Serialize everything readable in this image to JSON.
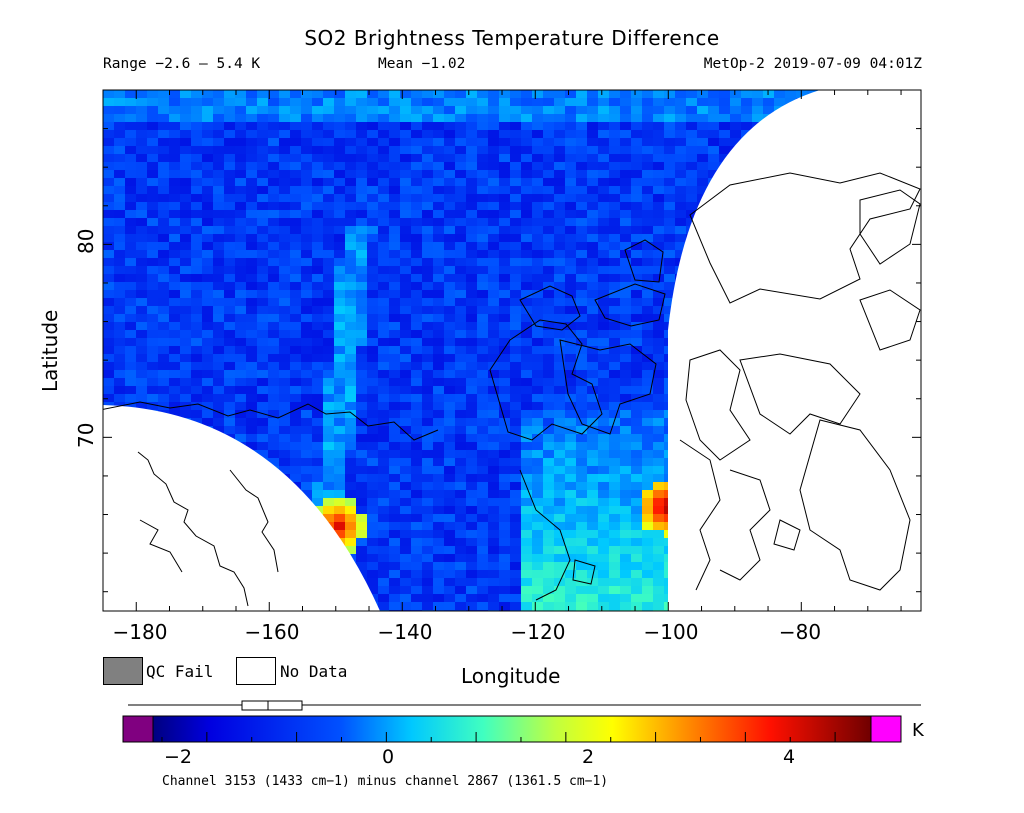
{
  "header": {
    "title": "SO2 Brightness Temperature Difference",
    "range": "Range −2.6 – 5.4 K",
    "mean": "Mean −1.02",
    "satellite": "MetOp-2 2019-07-09 04:01Z"
  },
  "axes": {
    "xlabel": "Longitude",
    "ylabel": "Latitude",
    "x_ticks": [
      "−180",
      "−160",
      "−140",
      "−120",
      "−100",
      "−80"
    ],
    "y_ticks": [
      "80",
      "70"
    ]
  },
  "legend": {
    "qc_fail": "QC Fail",
    "no_data": "No Data",
    "qc_color": "#808080",
    "no_data_color": "#ffffff"
  },
  "colorbar": {
    "ticks": [
      "−2",
      "0",
      "2",
      "4"
    ],
    "unit": "K",
    "range": [
      -2.6,
      5.4
    ],
    "under_color": "#800080",
    "over_color": "#ff00ff"
  },
  "footer": {
    "channel_note": "Channel 3153 (1433 cm−1) minus channel 2867 (1361.5 cm−1)"
  },
  "map_data": {
    "lon_range": [
      -185,
      -62
    ],
    "lat_range": [
      61,
      88
    ],
    "hotspots": [
      {
        "lon": -150.5,
        "lat": 65.6,
        "value": 4.8
      },
      {
        "lon": -101,
        "lat": 66.6,
        "value": 5.3
      }
    ]
  }
}
